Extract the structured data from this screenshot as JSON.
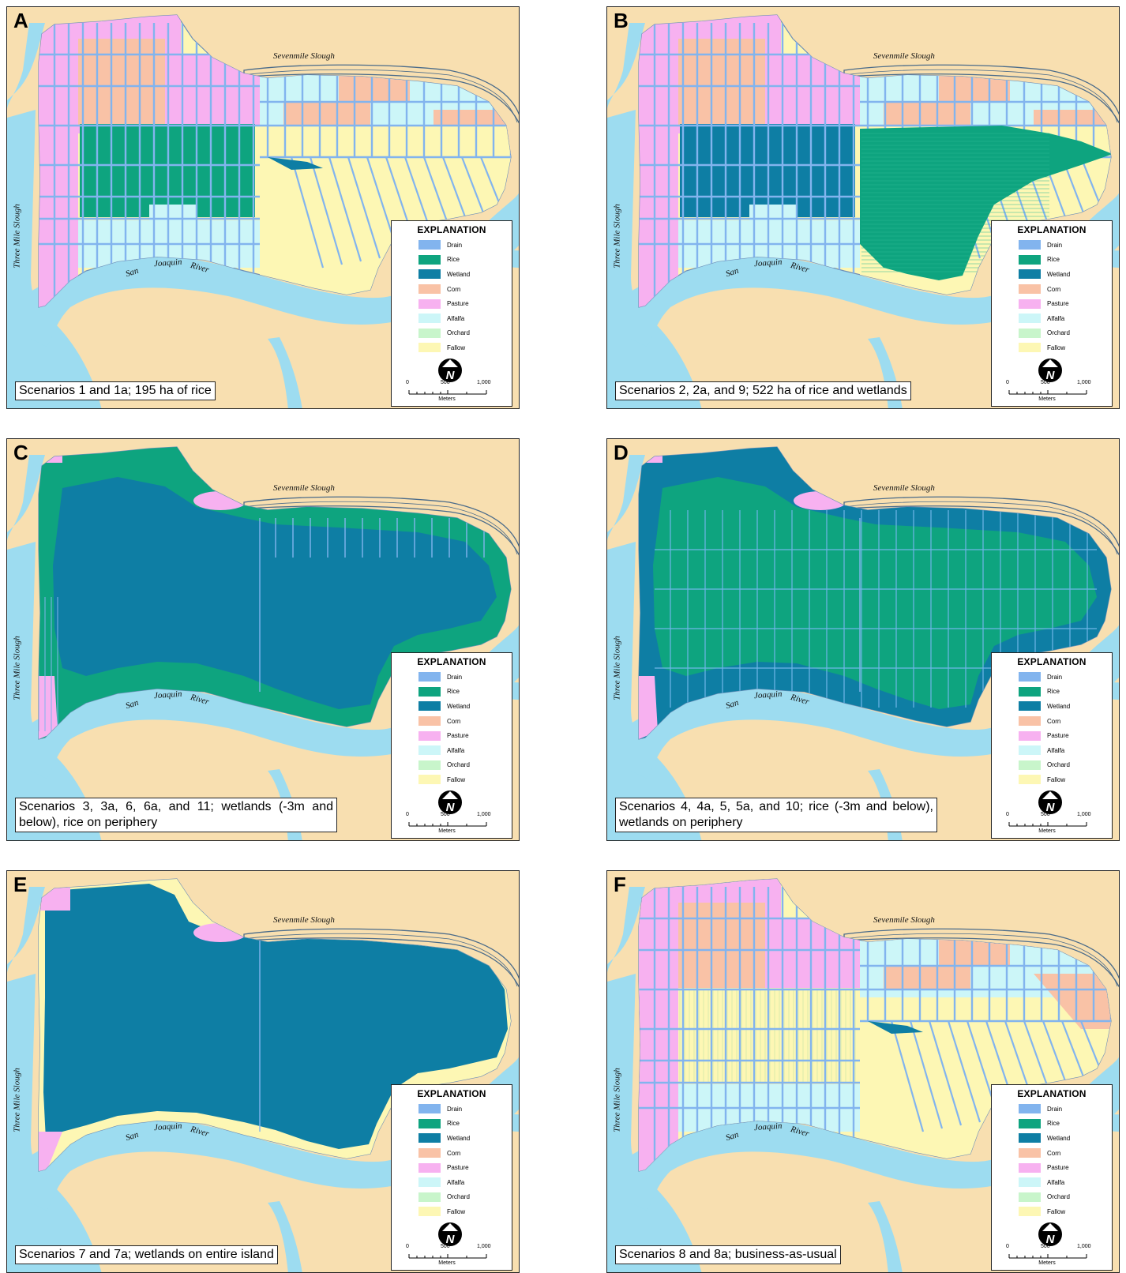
{
  "colors": {
    "background_land": "#f8dfb0",
    "water": "#9ddcf0",
    "drain": "#82b4ee",
    "rice": "#0ea47f",
    "wetland": "#0e7ea4",
    "corn": "#f9c2a6",
    "pasture": "#f7b1f0",
    "alfalfa": "#ccf6f8",
    "orchard": "#c8f5cb",
    "fallow": "#fdf7b4"
  },
  "labels": {
    "sevenmile": "Sevenmile Slough",
    "threemile": "Three Mile Slough",
    "san": "San",
    "joaquin": "Joaquin",
    "river": "River"
  },
  "legend": {
    "title": "EXPLANATION",
    "items": [
      {
        "label": "Drain",
        "color": "#82b4ee"
      },
      {
        "label": "Rice",
        "color": "#0ea47f"
      },
      {
        "label": "Wetland",
        "color": "#0e7ea4"
      },
      {
        "label": "Corn",
        "color": "#f9c2a6"
      },
      {
        "label": "Pasture",
        "color": "#f7b1f0"
      },
      {
        "label": "Alfalfa",
        "color": "#ccf6f8"
      },
      {
        "label": "Orchard",
        "color": "#c8f5cb"
      },
      {
        "label": "Fallow",
        "color": "#fdf7b4"
      }
    ],
    "north_letter": "N",
    "scale_ticks": [
      "0",
      "500",
      "1,000"
    ],
    "scale_units": "Meters"
  },
  "panels": [
    {
      "letter": "A",
      "caption": "Scenarios 1 and 1a; 195 ha of rice",
      "scheme": "A"
    },
    {
      "letter": "B",
      "caption": "Scenarios 2, 2a, and 9; 522 ha of rice and wetlands",
      "scheme": "B"
    },
    {
      "letter": "C",
      "caption": "Scenarios 3, 3a, 6, 6a, and 11; wetlands (-3m and below), rice on periphery",
      "scheme": "C"
    },
    {
      "letter": "D",
      "caption": "Scenarios 4, 4a, 5, 5a, and 10; rice (-3m and below), wetlands on periphery",
      "scheme": "D"
    },
    {
      "letter": "E",
      "caption": "Scenarios 7 and 7a; wetlands on entire island",
      "scheme": "E"
    },
    {
      "letter": "F",
      "caption": "Scenarios 8 and 8a; business-as-usual",
      "scheme": "F"
    }
  ]
}
